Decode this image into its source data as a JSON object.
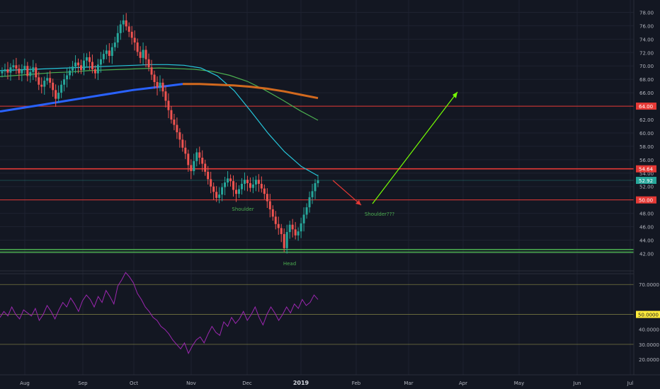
{
  "theme": {
    "background": "#131722",
    "grid": "#1e2230",
    "axis_text": "#b2b5be",
    "candle_up": "#26a69a",
    "candle_down": "#ef5350",
    "rsi_line": "#9c27b0"
  },
  "price_axis": {
    "ticks": [
      "78.00",
      "76.00",
      "74.00",
      "72.00",
      "70.00",
      "68.00",
      "66.00",
      "64.00",
      "62.00",
      "60.00",
      "58.00",
      "56.00",
      "54.00",
      "52.00",
      "50.00",
      "48.00",
      "46.00",
      "44.00",
      "42.00"
    ],
    "badges": [
      {
        "value": "64.00",
        "color": "#e53935"
      },
      {
        "value": "54.64",
        "color": "#e53935"
      },
      {
        "value": "52.92",
        "color": "#26a69a"
      },
      {
        "value": "50.00",
        "color": "#e53935"
      }
    ]
  },
  "rsi_axis": {
    "ticks": [
      "70.0000",
      "40.0000",
      "30.0000",
      "20.0000"
    ],
    "badge": {
      "value": "50.0000",
      "color": "#ffeb3b"
    }
  },
  "time_axis": {
    "labels": [
      "Aug",
      "Sep",
      "Oct",
      "Nov",
      "Dec",
      "2019",
      "Feb",
      "Mar",
      "Apr",
      "May",
      "Jun",
      "Jul"
    ]
  },
  "annotations": {
    "shoulder_left": "Shoulder",
    "head": "Head",
    "shoulder_right": "Shoulder???"
  },
  "chart_data": {
    "type": "candlestick",
    "price_range": [
      41.2,
      79.0
    ],
    "horizontal_levels": [
      {
        "value": 64.0,
        "color": "#e53935"
      },
      {
        "value": 54.64,
        "color": "#e53935"
      },
      {
        "value": 50.0,
        "color": "#e53935"
      },
      {
        "value": 42.6,
        "color": "#4caf50"
      },
      {
        "value": 42.2,
        "color": "#4caf50"
      },
      {
        "value": 52.92,
        "color": "#26a69a"
      }
    ],
    "closes": [
      69.2,
      69.5,
      69.0,
      69.8,
      70.1,
      69.6,
      68.9,
      69.4,
      70.0,
      68.5,
      69.1,
      69.8,
      68.3,
      67.2,
      66.9,
      67.8,
      68.2,
      67.5,
      66.4,
      65.1,
      66.0,
      67.2,
      68.0,
      68.6,
      69.3,
      69.9,
      70.5,
      70.1,
      69.4,
      70.8,
      71.3,
      70.6,
      69.5,
      68.9,
      70.2,
      71.0,
      71.8,
      72.3,
      71.5,
      72.8,
      73.5,
      74.9,
      76.2,
      76.8,
      75.9,
      75.1,
      74.2,
      73.5,
      72.1,
      71.2,
      72.4,
      71.0,
      69.8,
      68.7,
      67.6,
      66.8,
      67.5,
      66.2,
      64.8,
      63.4,
      62.0,
      61.2,
      60.1,
      59.0,
      57.8,
      56.9,
      55.2,
      54.3,
      55.8,
      57.1,
      56.3,
      55.4,
      54.2,
      53.1,
      52.0,
      51.2,
      50.3,
      50.8,
      51.9,
      52.6,
      53.2,
      52.8,
      51.5,
      50.9,
      51.6,
      52.4,
      53.0,
      52.5,
      51.8,
      52.3,
      53.0,
      52.4,
      51.7,
      50.9,
      49.8,
      48.6,
      47.5,
      46.4,
      45.8,
      44.9,
      42.8,
      45.2,
      46.3,
      45.6,
      44.7,
      45.3,
      46.5,
      47.8,
      48.9,
      50.4,
      51.3,
      52.5,
      52.92
    ],
    "sma_cyan": [
      69.3,
      69.4,
      69.5,
      69.6,
      69.7,
      69.8,
      69.9,
      70.0,
      70.1,
      70.2,
      70.2,
      70.1,
      69.7,
      68.5,
      66.3,
      63.2,
      60.0,
      57.2,
      55.0,
      53.6
    ],
    "sma_green": [
      68.4,
      68.6,
      68.8,
      69.0,
      69.1,
      69.3,
      69.4,
      69.5,
      69.6,
      69.7,
      69.6,
      69.5,
      69.2,
      68.6,
      67.7,
      66.4,
      64.9,
      63.3,
      61.9
    ],
    "sma_blue": [
      63.2,
      63.6,
      64.0,
      64.4,
      64.8,
      65.2,
      65.6,
      66.0,
      66.4,
      66.7,
      67.0,
      67.3
    ],
    "sma_orange": [
      67.3,
      67.3,
      67.2,
      67.1,
      66.9,
      66.6,
      66.2,
      65.7,
      65.2
    ],
    "rsi": [
      48,
      52,
      49,
      55,
      50,
      47,
      53,
      51,
      49,
      54,
      46,
      50,
      56,
      52,
      47,
      53,
      58,
      55,
      61,
      57,
      52,
      59,
      63,
      60,
      55,
      62,
      58,
      66,
      62,
      57,
      69,
      73,
      78,
      75,
      71,
      64,
      60,
      55,
      52,
      48,
      46,
      42,
      40,
      37,
      33,
      30,
      27,
      31,
      24,
      29,
      33,
      35,
      31,
      37,
      42,
      38,
      36,
      45,
      42,
      48,
      44,
      47,
      52,
      46,
      50,
      55,
      48,
      43,
      50,
      55,
      51,
      46,
      50,
      55,
      51,
      57,
      54,
      60,
      56,
      58,
      63,
      60
    ],
    "rsi_levels": [
      70,
      50,
      30
    ]
  }
}
